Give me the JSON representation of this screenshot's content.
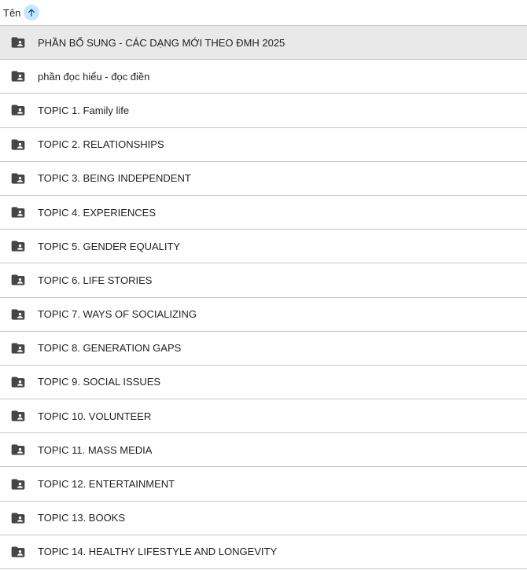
{
  "header": {
    "name_label": "Tên",
    "sort_icon": "arrow-up-icon"
  },
  "folders": [
    {
      "name": "PHẦN BỔ SUNG - CÁC DẠNG MỚI THEO ĐMH 2025"
    },
    {
      "name": "phần đọc hiểu - đọc điền"
    },
    {
      "name": "TOPIC 1. Family life"
    },
    {
      "name": "TOPIC 2. RELATIONSHIPS"
    },
    {
      "name": "TOPIC 3. BEING INDEPENDENT"
    },
    {
      "name": "TOPIC 4. EXPERIENCES"
    },
    {
      "name": "TOPIC 5. GENDER EQUALITY"
    },
    {
      "name": "TOPIC 6. LIFE STORIES"
    },
    {
      "name": "TOPIC 7. WAYS OF SOCIALIZING"
    },
    {
      "name": "TOPIC 8. GENERATION GAPS"
    },
    {
      "name": "TOPIC 9. SOCIAL ISSUES"
    },
    {
      "name": "TOPIC 10. VOLUNTEER"
    },
    {
      "name": "TOPIC 11. MASS MEDIA"
    },
    {
      "name": "TOPIC 12. ENTERTAINMENT"
    },
    {
      "name": "TOPIC 13. BOOKS"
    },
    {
      "name": "TOPIC 14. HEALTHY LIFESTYLE AND LONGEVITY"
    }
  ]
}
